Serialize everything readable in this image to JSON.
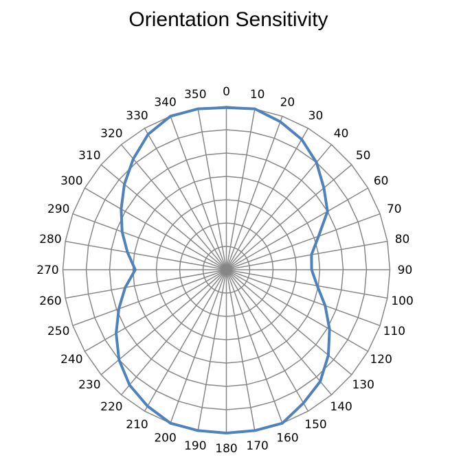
{
  "chart_data": {
    "type": "radar",
    "title": "Orientation Sensitivity",
    "categories": [
      "0",
      "10",
      "20",
      "30",
      "40",
      "50",
      "60",
      "70",
      "80",
      "90",
      "100",
      "110",
      "120",
      "130",
      "140",
      "150",
      "160",
      "170",
      "180",
      "190",
      "200",
      "210",
      "220",
      "230",
      "240",
      "250",
      "260",
      "270",
      "280",
      "290",
      "300",
      "310",
      "320",
      "330",
      "340",
      "350"
    ],
    "series": [
      {
        "name": "Sensitivity",
        "color": "#4f81bd",
        "values": [
          6.95,
          7.0,
          6.75,
          6.45,
          6.0,
          5.45,
          5.0,
          4.2,
          3.7,
          3.65,
          3.95,
          4.5,
          5.1,
          5.7,
          6.25,
          6.6,
          7.0,
          7.0,
          7.0,
          7.0,
          7.0,
          6.75,
          6.45,
          6.0,
          5.45,
          4.9,
          4.4,
          3.9,
          4.3,
          4.75,
          5.2,
          5.7,
          6.2,
          6.7,
          7.0,
          7.0
        ]
      }
    ],
    "rlim": [
      0,
      7
    ],
    "rings": 7,
    "grid": true,
    "grid_color": "#868686",
    "legend": "none"
  }
}
